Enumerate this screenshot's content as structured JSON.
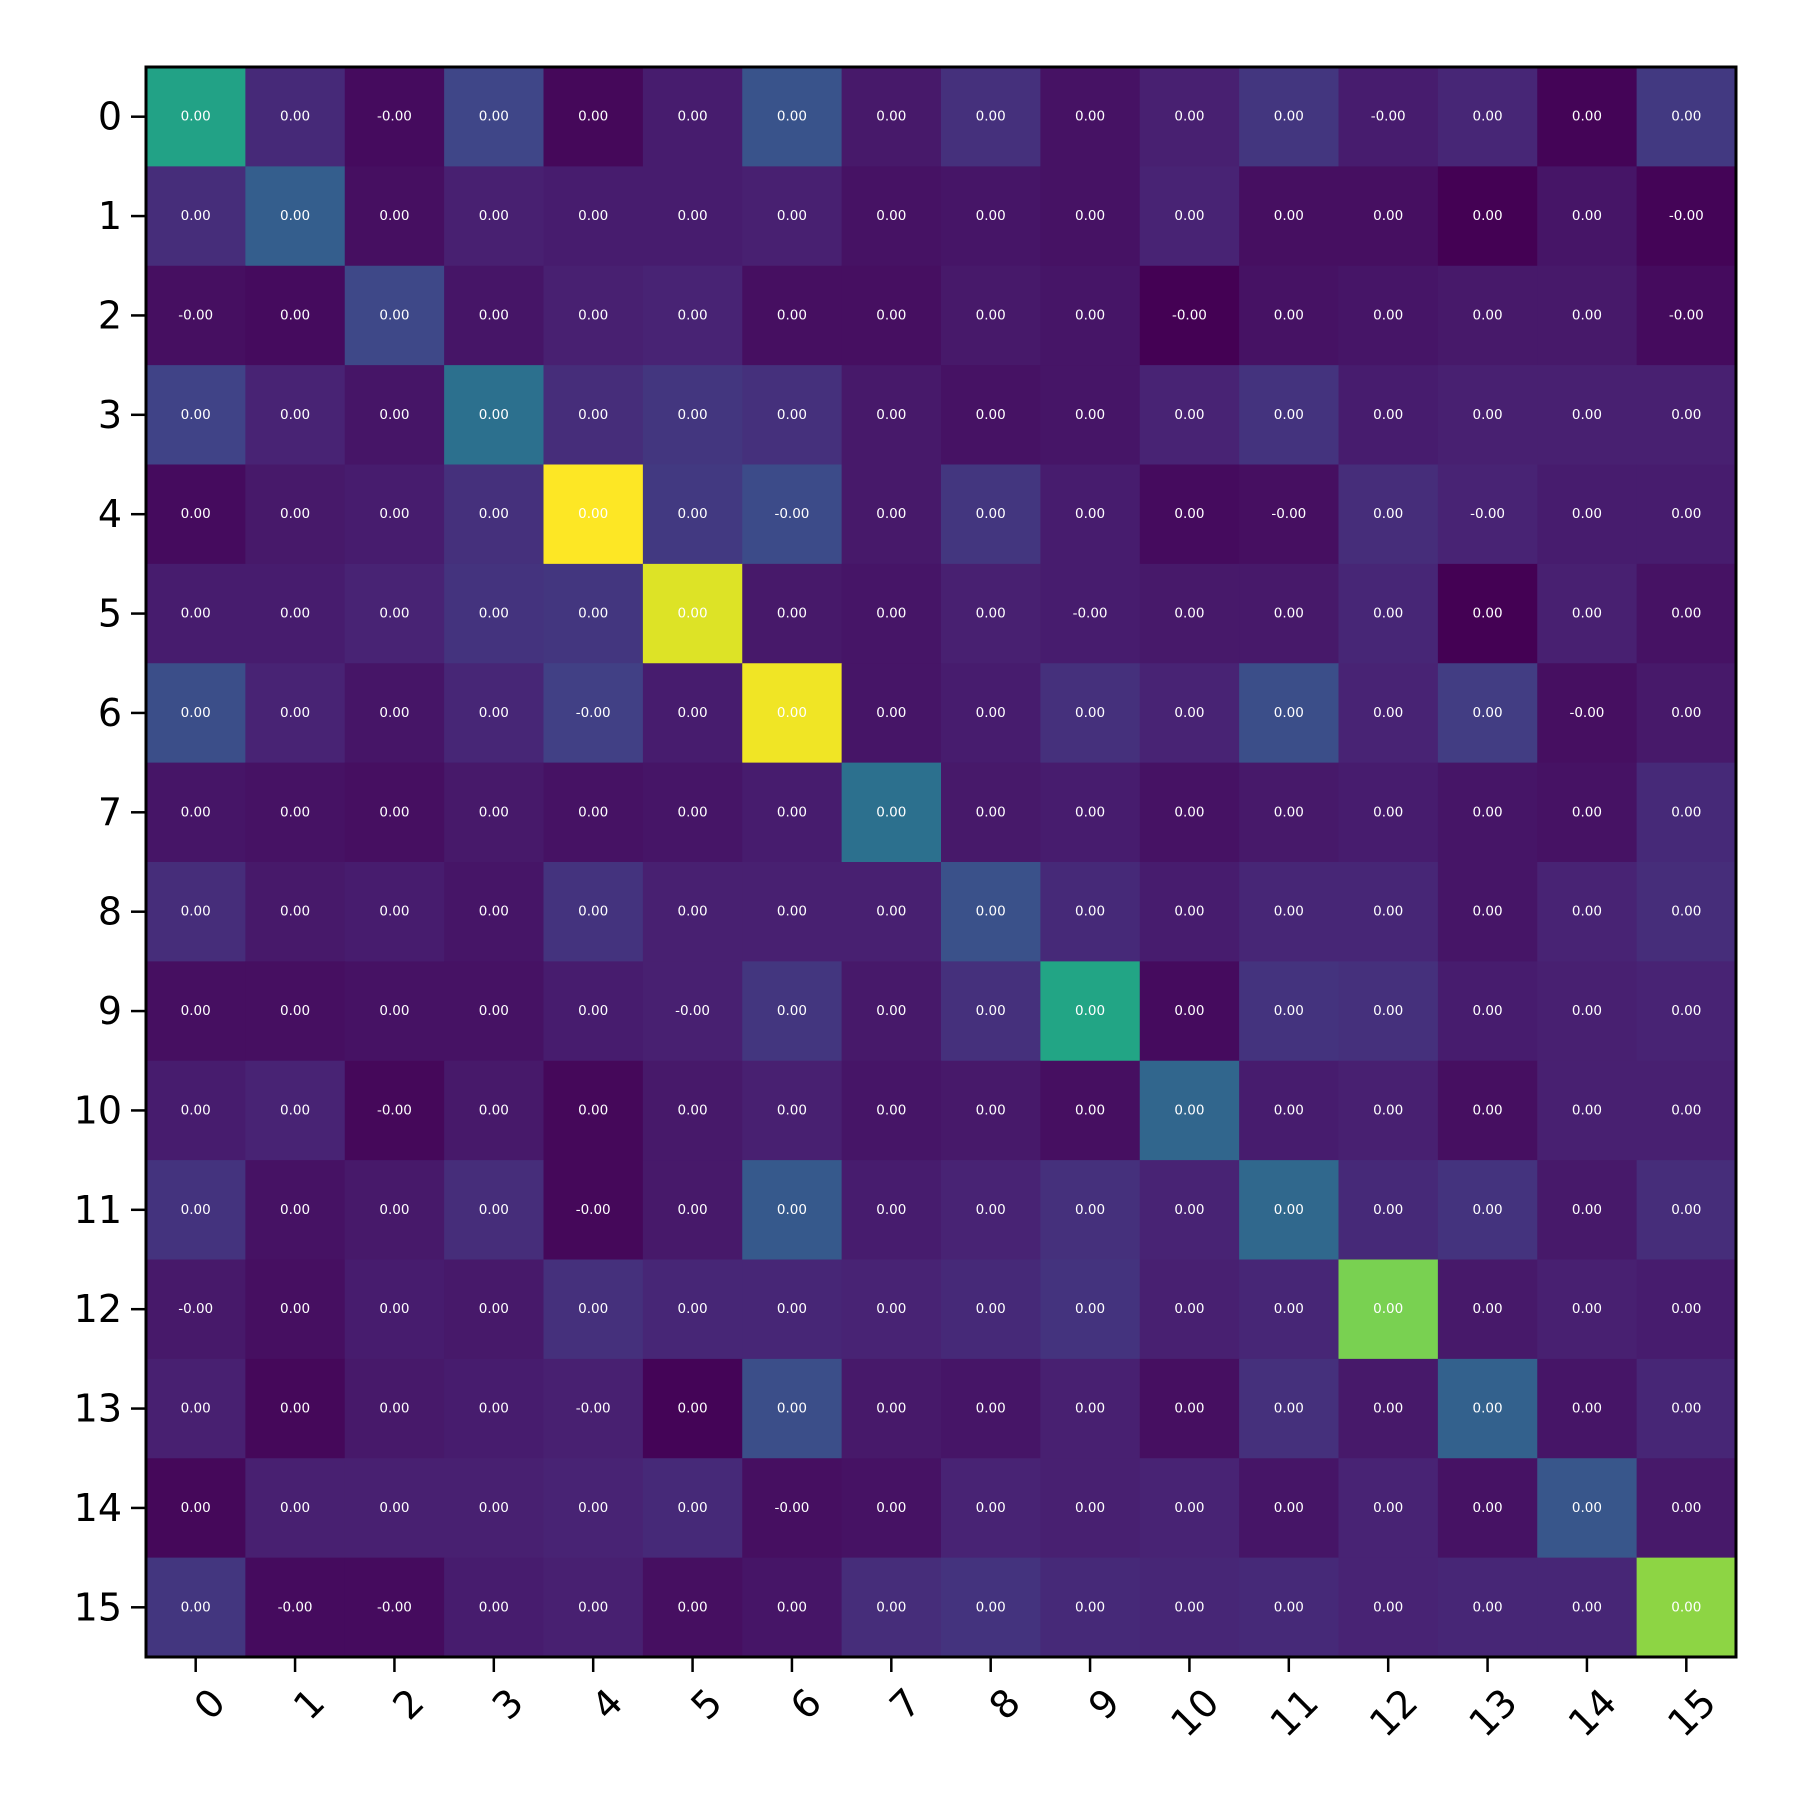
{
  "chart_data": {
    "type": "heatmap",
    "title": "",
    "xlabel": "",
    "ylabel": "",
    "colormap": "viridis",
    "x_tick_labels": [
      "0",
      "1",
      "2",
      "3",
      "4",
      "5",
      "6",
      "7",
      "8",
      "9",
      "10",
      "11",
      "12",
      "13",
      "14",
      "15"
    ],
    "y_tick_labels": [
      "0",
      "1",
      "2",
      "3",
      "4",
      "5",
      "6",
      "7",
      "8",
      "9",
      "10",
      "11",
      "12",
      "13",
      "14",
      "15"
    ],
    "color_intensity": [
      [
        0.58,
        0.12,
        0.03,
        0.21,
        0.02,
        0.08,
        0.26,
        0.07,
        0.14,
        0.05,
        0.09,
        0.16,
        0.08,
        0.11,
        0.01,
        0.17
      ],
      [
        0.13,
        0.3,
        0.04,
        0.09,
        0.08,
        0.08,
        0.09,
        0.05,
        0.06,
        0.05,
        0.1,
        0.04,
        0.04,
        0.0,
        0.06,
        0.01
      ],
      [
        0.04,
        0.03,
        0.22,
        0.06,
        0.09,
        0.1,
        0.04,
        0.04,
        0.07,
        0.06,
        0.0,
        0.05,
        0.06,
        0.07,
        0.07,
        0.03
      ],
      [
        0.2,
        0.1,
        0.06,
        0.37,
        0.13,
        0.16,
        0.14,
        0.07,
        0.05,
        0.06,
        0.1,
        0.15,
        0.08,
        0.09,
        0.09,
        0.09
      ],
      [
        0.03,
        0.07,
        0.08,
        0.14,
        1.0,
        0.17,
        0.23,
        0.07,
        0.16,
        0.08,
        0.03,
        0.04,
        0.13,
        0.1,
        0.08,
        0.08
      ],
      [
        0.08,
        0.08,
        0.1,
        0.15,
        0.16,
        0.95,
        0.07,
        0.06,
        0.09,
        0.08,
        0.07,
        0.07,
        0.11,
        0.0,
        0.09,
        0.05
      ],
      [
        0.24,
        0.1,
        0.06,
        0.11,
        0.19,
        0.08,
        0.98,
        0.06,
        0.08,
        0.14,
        0.1,
        0.24,
        0.1,
        0.18,
        0.04,
        0.07
      ],
      [
        0.06,
        0.05,
        0.04,
        0.07,
        0.05,
        0.06,
        0.08,
        0.37,
        0.07,
        0.08,
        0.05,
        0.07,
        0.08,
        0.06,
        0.05,
        0.12
      ],
      [
        0.13,
        0.07,
        0.08,
        0.06,
        0.15,
        0.09,
        0.09,
        0.09,
        0.25,
        0.12,
        0.08,
        0.11,
        0.11,
        0.06,
        0.1,
        0.13
      ],
      [
        0.04,
        0.04,
        0.05,
        0.05,
        0.08,
        0.09,
        0.16,
        0.07,
        0.14,
        0.59,
        0.03,
        0.15,
        0.14,
        0.08,
        0.09,
        0.1
      ],
      [
        0.08,
        0.1,
        0.02,
        0.07,
        0.02,
        0.07,
        0.09,
        0.06,
        0.07,
        0.04,
        0.33,
        0.08,
        0.09,
        0.04,
        0.09,
        0.09
      ],
      [
        0.15,
        0.05,
        0.07,
        0.13,
        0.02,
        0.07,
        0.28,
        0.08,
        0.1,
        0.14,
        0.1,
        0.34,
        0.12,
        0.15,
        0.07,
        0.13
      ],
      [
        0.07,
        0.04,
        0.08,
        0.07,
        0.14,
        0.11,
        0.11,
        0.1,
        0.12,
        0.15,
        0.09,
        0.11,
        0.8,
        0.07,
        0.09,
        0.08
      ],
      [
        0.09,
        0.02,
        0.07,
        0.08,
        0.09,
        0.01,
        0.24,
        0.07,
        0.06,
        0.09,
        0.04,
        0.14,
        0.07,
        0.31,
        0.06,
        0.11
      ],
      [
        0.02,
        0.09,
        0.09,
        0.09,
        0.1,
        0.12,
        0.04,
        0.05,
        0.1,
        0.09,
        0.1,
        0.06,
        0.1,
        0.05,
        0.27,
        0.07
      ],
      [
        0.16,
        0.03,
        0.03,
        0.08,
        0.09,
        0.04,
        0.06,
        0.13,
        0.15,
        0.12,
        0.11,
        0.12,
        0.1,
        0.11,
        0.11,
        0.83
      ]
    ],
    "cell_values": [
      [
        "0.00",
        "0.00",
        "-0.00",
        "0.00",
        "0.00",
        "0.00",
        "0.00",
        "0.00",
        "0.00",
        "0.00",
        "0.00",
        "0.00",
        "-0.00",
        "0.00",
        "0.00",
        "0.00"
      ],
      [
        "0.00",
        "0.00",
        "0.00",
        "0.00",
        "0.00",
        "0.00",
        "0.00",
        "0.00",
        "0.00",
        "0.00",
        "0.00",
        "0.00",
        "0.00",
        "0.00",
        "0.00",
        "-0.00"
      ],
      [
        "-0.00",
        "0.00",
        "0.00",
        "0.00",
        "0.00",
        "0.00",
        "0.00",
        "0.00",
        "0.00",
        "0.00",
        "-0.00",
        "0.00",
        "0.00",
        "0.00",
        "0.00",
        "-0.00"
      ],
      [
        "0.00",
        "0.00",
        "0.00",
        "0.00",
        "0.00",
        "0.00",
        "0.00",
        "0.00",
        "0.00",
        "0.00",
        "0.00",
        "0.00",
        "0.00",
        "0.00",
        "0.00",
        "0.00"
      ],
      [
        "0.00",
        "0.00",
        "0.00",
        "0.00",
        "0.00",
        "0.00",
        "-0.00",
        "0.00",
        "0.00",
        "0.00",
        "0.00",
        "-0.00",
        "0.00",
        "-0.00",
        "0.00",
        "0.00"
      ],
      [
        "0.00",
        "0.00",
        "0.00",
        "0.00",
        "0.00",
        "0.00",
        "0.00",
        "0.00",
        "0.00",
        "-0.00",
        "0.00",
        "0.00",
        "0.00",
        "0.00",
        "0.00",
        "0.00"
      ],
      [
        "0.00",
        "0.00",
        "0.00",
        "0.00",
        "-0.00",
        "0.00",
        "0.00",
        "0.00",
        "0.00",
        "0.00",
        "0.00",
        "0.00",
        "0.00",
        "0.00",
        "-0.00",
        "0.00"
      ],
      [
        "0.00",
        "0.00",
        "0.00",
        "0.00",
        "0.00",
        "0.00",
        "0.00",
        "0.00",
        "0.00",
        "0.00",
        "0.00",
        "0.00",
        "0.00",
        "0.00",
        "0.00",
        "0.00"
      ],
      [
        "0.00",
        "0.00",
        "0.00",
        "0.00",
        "0.00",
        "0.00",
        "0.00",
        "0.00",
        "0.00",
        "0.00",
        "0.00",
        "0.00",
        "0.00",
        "0.00",
        "0.00",
        "0.00"
      ],
      [
        "0.00",
        "0.00",
        "0.00",
        "0.00",
        "0.00",
        "-0.00",
        "0.00",
        "0.00",
        "0.00",
        "0.00",
        "0.00",
        "0.00",
        "0.00",
        "0.00",
        "0.00",
        "0.00"
      ],
      [
        "0.00",
        "0.00",
        "-0.00",
        "0.00",
        "0.00",
        "0.00",
        "0.00",
        "0.00",
        "0.00",
        "0.00",
        "0.00",
        "0.00",
        "0.00",
        "0.00",
        "0.00",
        "0.00"
      ],
      [
        "0.00",
        "0.00",
        "0.00",
        "0.00",
        "-0.00",
        "0.00",
        "0.00",
        "0.00",
        "0.00",
        "0.00",
        "0.00",
        "0.00",
        "0.00",
        "0.00",
        "0.00",
        "0.00"
      ],
      [
        "-0.00",
        "0.00",
        "0.00",
        "0.00",
        "0.00",
        "0.00",
        "0.00",
        "0.00",
        "0.00",
        "0.00",
        "0.00",
        "0.00",
        "0.00",
        "0.00",
        "0.00",
        "0.00"
      ],
      [
        "0.00",
        "0.00",
        "0.00",
        "0.00",
        "-0.00",
        "0.00",
        "0.00",
        "0.00",
        "0.00",
        "0.00",
        "0.00",
        "0.00",
        "0.00",
        "0.00",
        "0.00",
        "0.00"
      ],
      [
        "0.00",
        "0.00",
        "0.00",
        "0.00",
        "0.00",
        "0.00",
        "-0.00",
        "0.00",
        "0.00",
        "0.00",
        "0.00",
        "0.00",
        "0.00",
        "0.00",
        "0.00",
        "0.00"
      ],
      [
        "0.00",
        "-0.00",
        "-0.00",
        "0.00",
        "0.00",
        "0.00",
        "0.00",
        "0.00",
        "0.00",
        "0.00",
        "0.00",
        "0.00",
        "0.00",
        "0.00",
        "0.00",
        "0.00"
      ]
    ],
    "grid": false,
    "legend": "none"
  }
}
